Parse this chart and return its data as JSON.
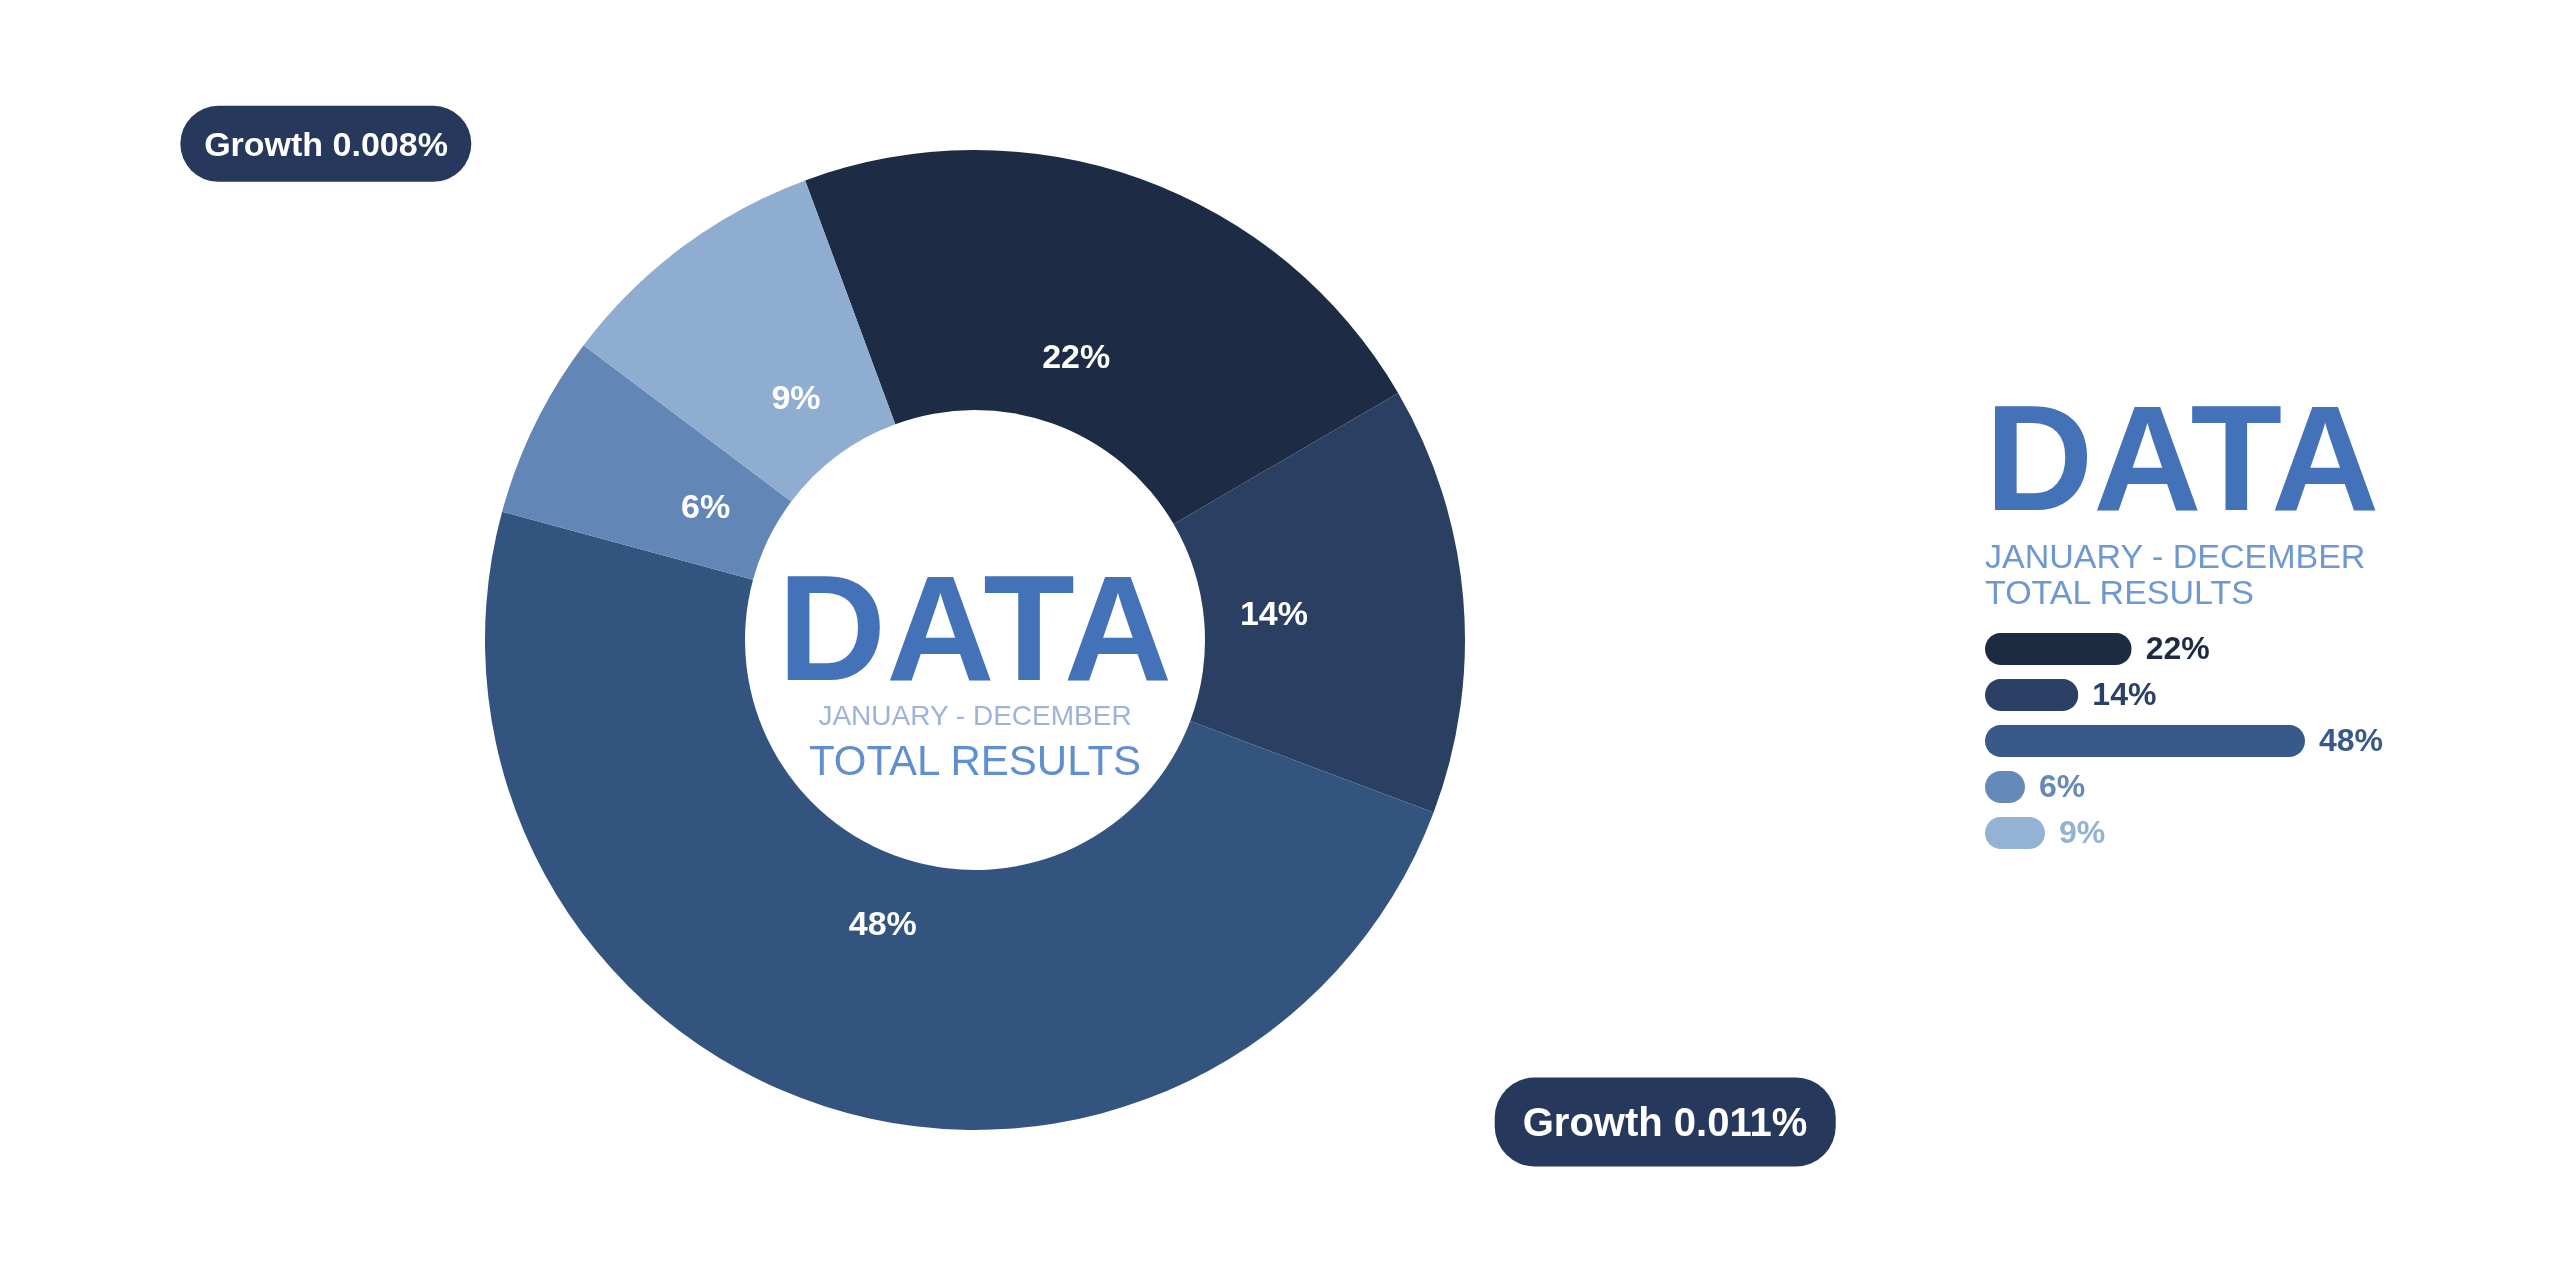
{
  "chart_data": [
    {
      "type": "donut",
      "title": "DATA",
      "subtitle": "JANUARY - DECEMBER",
      "annotations": [
        "TOTAL RESULTS",
        "Growth 0.008%",
        "Growth 0.011%"
      ],
      "categories": [
        null,
        null,
        null,
        null,
        null
      ],
      "values": [
        22,
        14,
        48,
        6,
        9
      ],
      "colors": [
        "#1e2b44",
        "#2b3f62",
        "#32547f",
        "#6286b5",
        "#8fadd0"
      ],
      "value_labels": [
        "22%",
        "14%",
        "48%",
        "6%",
        "9%"
      ]
    },
    {
      "type": "bar",
      "orientation": "horizontal",
      "title": "DATA",
      "subtitle": "JANUARY - DECEMBER",
      "annotations": [
        "TOTAL RESULTS"
      ],
      "categories": [
        null,
        null,
        null,
        null,
        null
      ],
      "values": [
        22,
        14,
        48,
        6,
        9
      ],
      "colors": [
        "#1c2a42",
        "#2b4065",
        "#375a8a",
        "#6589b8",
        "#93b2d4"
      ],
      "value_labels": [
        "22%",
        "14%",
        "48%",
        "6%",
        "9%"
      ]
    }
  ]
}
